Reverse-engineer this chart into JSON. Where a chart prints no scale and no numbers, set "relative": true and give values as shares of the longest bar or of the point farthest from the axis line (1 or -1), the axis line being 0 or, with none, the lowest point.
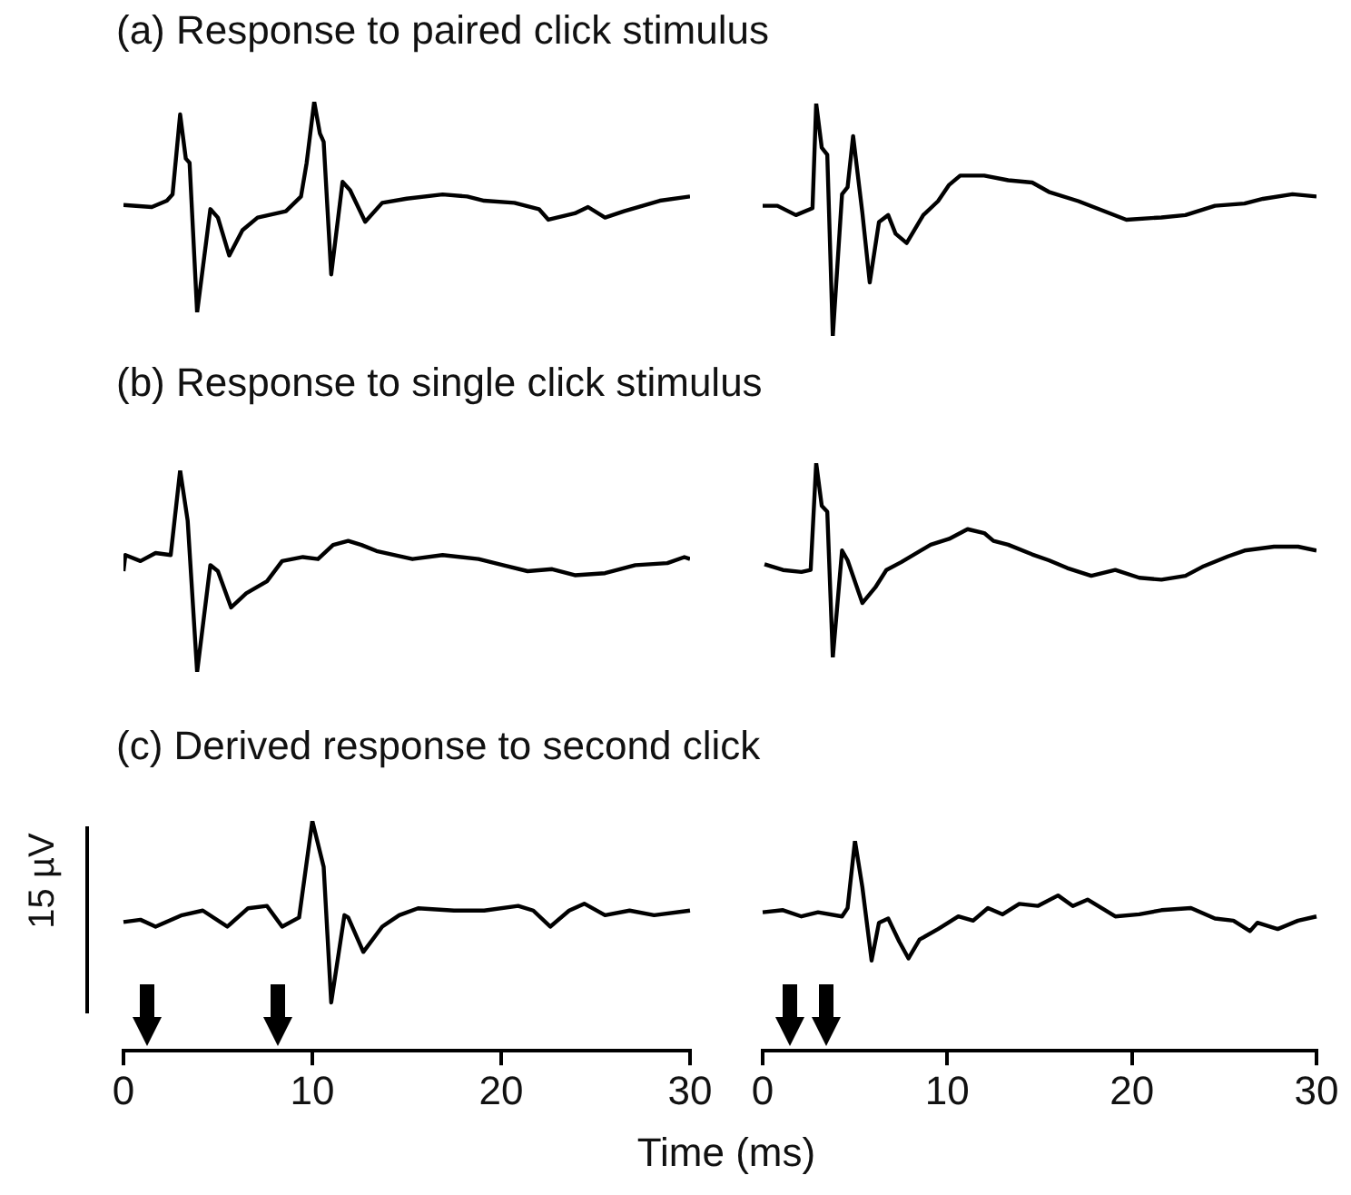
{
  "chart_data": [
    {
      "type": "line",
      "title": "(a) Response to paired click stimulus",
      "relative": true,
      "xlim": [
        0,
        30
      ],
      "tick_labels": false,
      "grid": false,
      "marker": "none",
      "color": "#000000",
      "x": [
        0,
        1.5,
        2.3,
        2.6,
        3.0,
        3.3,
        3.5,
        3.9,
        4.6,
        5.0,
        5.6,
        6.3,
        7.1,
        8.6,
        9.4,
        9.7,
        10.1,
        10.4,
        10.6,
        11.0,
        11.6,
        12.0,
        12.8,
        13.7,
        15.0,
        16.9,
        18.2,
        19.1,
        20.7,
        22.0,
        22.5,
        23.9,
        24.6,
        25.5,
        26.5,
        28.4,
        30
      ],
      "values": [
        0.51,
        0.5,
        0.53,
        0.56,
        0.94,
        0.73,
        0.71,
        0,
        0.49,
        0.45,
        0.27,
        0.39,
        0.45,
        0.48,
        0.55,
        0.71,
        1,
        0.85,
        0.81,
        0.18,
        0.62,
        0.58,
        0.43,
        0.52,
        0.54,
        0.56,
        0.55,
        0.53,
        0.52,
        0.49,
        0.44,
        0.47,
        0.5,
        0.45,
        0.48,
        0.53,
        0.55
      ]
    },
    {
      "type": "line",
      "relative": true,
      "xlim": [
        0,
        30
      ],
      "tick_labels": false,
      "grid": false,
      "marker": "none",
      "color": "#000000",
      "x": [
        0,
        0.8,
        1.8,
        2.7,
        2.9,
        3.2,
        3.5,
        3.8,
        4.3,
        4.6,
        4.9,
        5.4,
        5.8,
        6.3,
        6.8,
        7.2,
        7.8,
        8.7,
        9.5,
        10.1,
        10.7,
        12.0,
        13.3,
        14.6,
        15.5,
        17.1,
        18.4,
        19.7,
        21.6,
        22.9,
        24.5,
        26.1,
        27.1,
        28.7,
        30
      ],
      "values": [
        0.56,
        0.56,
        0.52,
        0.55,
        1,
        0.81,
        0.78,
        0,
        0.61,
        0.64,
        0.86,
        0.53,
        0.23,
        0.49,
        0.52,
        0.44,
        0.4,
        0.52,
        0.58,
        0.65,
        0.69,
        0.69,
        0.67,
        0.66,
        0.62,
        0.58,
        0.54,
        0.5,
        0.51,
        0.52,
        0.56,
        0.57,
        0.59,
        0.61,
        0.6
      ]
    },
    {
      "type": "line",
      "title": "(b) Response to single click stimulus",
      "relative": true,
      "xlim": [
        0,
        30
      ],
      "tick_labels": false,
      "grid": false,
      "marker": "none",
      "color": "#000000",
      "x": [
        0,
        0.1,
        0.9,
        1.7,
        2.5,
        3.0,
        3.4,
        3.9,
        4.6,
        5.0,
        5.7,
        6.5,
        7.6,
        8.4,
        9.5,
        10.3,
        11.1,
        11.9,
        12.6,
        13.4,
        15.3,
        16.9,
        18.8,
        20.1,
        21.4,
        22.7,
        23.9,
        25.5,
        27.1,
        28.8,
        29.7,
        30
      ],
      "values": [
        0.5,
        0.58,
        0.55,
        0.59,
        0.58,
        1,
        0.75,
        0,
        0.53,
        0.5,
        0.32,
        0.39,
        0.45,
        0.55,
        0.57,
        0.56,
        0.63,
        0.65,
        0.63,
        0.6,
        0.56,
        0.58,
        0.56,
        0.53,
        0.5,
        0.51,
        0.48,
        0.49,
        0.53,
        0.54,
        0.57,
        0.56
      ]
    },
    {
      "type": "line",
      "relative": true,
      "xlim": [
        0,
        30
      ],
      "tick_labels": false,
      "grid": false,
      "marker": "none",
      "color": "#000000",
      "x": [
        0.1,
        1.1,
        2.1,
        2.6,
        2.9,
        3.2,
        3.5,
        3.8,
        4.3,
        4.6,
        5.4,
        6.1,
        6.7,
        7.5,
        9.1,
        10.1,
        11.1,
        12.0,
        12.5,
        13.3,
        14.6,
        15.5,
        16.5,
        17.8,
        19.1,
        20.4,
        21.6,
        22.9,
        23.9,
        25.2,
        26.1,
        27.7,
        29.0,
        30
      ],
      "values": [
        0.48,
        0.45,
        0.44,
        0.45,
        1,
        0.78,
        0.75,
        0,
        0.55,
        0.5,
        0.28,
        0.36,
        0.45,
        0.49,
        0.58,
        0.61,
        0.66,
        0.64,
        0.6,
        0.58,
        0.53,
        0.5,
        0.46,
        0.42,
        0.45,
        0.41,
        0.4,
        0.42,
        0.47,
        0.52,
        0.55,
        0.57,
        0.57,
        0.55
      ]
    },
    {
      "type": "line",
      "title": "(c) Derived response to second click",
      "ylabel": "15 µV",
      "xlabel": "Time (ms)",
      "relative": true,
      "xlim": [
        0,
        30
      ],
      "xticks": [
        0,
        10,
        20,
        30
      ],
      "grid": false,
      "marker": "none",
      "color": "#000000",
      "x": [
        0,
        0.9,
        1.7,
        3.1,
        4.2,
        5.5,
        6.6,
        7.6,
        8.4,
        9.3,
        10.0,
        10.6,
        11.0,
        11.7,
        11.9,
        12.7,
        13.7,
        14.6,
        15.6,
        17.5,
        19.1,
        20.9,
        21.7,
        22.6,
        23.6,
        24.4,
        25.5,
        26.8,
        28.1,
        30
      ],
      "values": [
        0.56,
        0.57,
        0.54,
        0.59,
        0.61,
        0.54,
        0.62,
        0.63,
        0.54,
        0.58,
        1,
        0.8,
        0.21,
        0.59,
        0.58,
        0.43,
        0.54,
        0.59,
        0.62,
        0.61,
        0.61,
        0.63,
        0.61,
        0.54,
        0.61,
        0.64,
        0.59,
        0.61,
        0.59,
        0.61
      ]
    },
    {
      "type": "line",
      "relative": true,
      "xlim": [
        0,
        30
      ],
      "xticks": [
        0,
        10,
        20,
        30
      ],
      "grid": false,
      "marker": "none",
      "color": "#000000",
      "x": [
        0,
        1.1,
        2.1,
        3.0,
        4.3,
        4.6,
        5.0,
        5.4,
        5.9,
        6.3,
        6.8,
        7.4,
        7.9,
        8.5,
        9.5,
        10.6,
        11.4,
        12.2,
        13.0,
        13.9,
        14.9,
        16.0,
        16.8,
        17.6,
        19.1,
        20.4,
        21.6,
        23.2,
        24.5,
        25.5,
        26.4,
        26.8,
        27.9,
        29.0,
        30
      ],
      "values": [
        0.66,
        0.67,
        0.64,
        0.66,
        0.64,
        0.68,
        1,
        0.78,
        0.43,
        0.61,
        0.63,
        0.52,
        0.44,
        0.53,
        0.58,
        0.64,
        0.62,
        0.68,
        0.65,
        0.7,
        0.69,
        0.74,
        0.69,
        0.72,
        0.64,
        0.65,
        0.67,
        0.68,
        0.63,
        0.62,
        0.57,
        0.61,
        0.58,
        0.62,
        0.64
      ]
    }
  ]
}
